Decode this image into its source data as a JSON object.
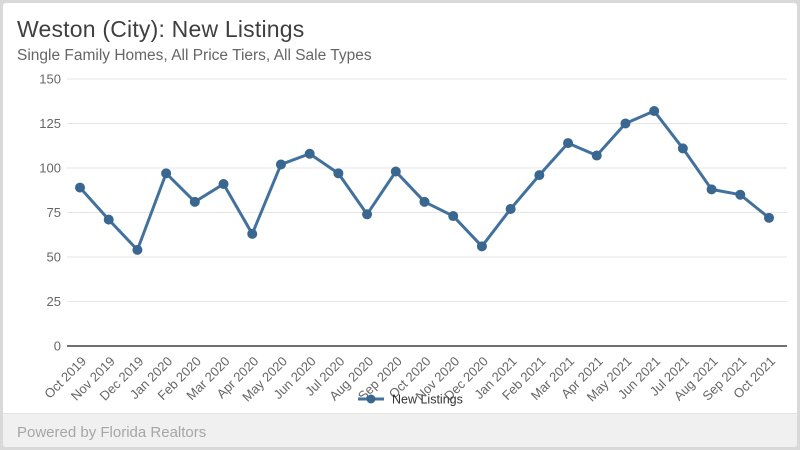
{
  "header": {
    "title": "Weston (City): New Listings",
    "subtitle": "Single Family Homes, All Price Tiers, All Sale Types"
  },
  "legend": {
    "label": "New Listings"
  },
  "footer": {
    "text": "Powered by Florida Realtors"
  },
  "colors": {
    "series": "#41719C",
    "marker": "#3A678F",
    "grid": "#e6e6e6",
    "axis_line": "#404040",
    "axis_label": "#666666",
    "title": "#3f3f3f",
    "subtitle": "#666666",
    "legend_text": "#333333",
    "footer_text": "#a6a6a6"
  },
  "chart_data": {
    "type": "line",
    "title": "Weston (City): New Listings",
    "subtitle": "Single Family Homes, All Price Tiers, All Sale Types",
    "categories": [
      "Oct 2019",
      "Nov 2019",
      "Dec 2019",
      "Jan 2020",
      "Feb 2020",
      "Mar 2020",
      "Apr 2020",
      "May 2020",
      "Jun 2020",
      "Jul 2020",
      "Aug 2020",
      "Sep 2020",
      "Oct 2020",
      "Nov 2020",
      "Dec 2020",
      "Jan 2021",
      "Feb 2021",
      "Mar 2021",
      "Apr 2021",
      "May 2021",
      "Jun 2021",
      "Jul 2021",
      "Aug 2021",
      "Sep 2021",
      "Oct 2021"
    ],
    "series": [
      {
        "name": "New Listings",
        "values": [
          89,
          71,
          54,
          97,
          81,
          91,
          63,
          102,
          108,
          97,
          74,
          98,
          81,
          73,
          56,
          77,
          96,
          114,
          107,
          125,
          132,
          111,
          88,
          85,
          72
        ]
      }
    ],
    "xlabel": "",
    "ylabel": "",
    "ylim": [
      0,
      150
    ],
    "yticks": [
      0,
      25,
      50,
      75,
      100,
      125,
      150
    ],
    "grid": true,
    "legend_position": "bottom",
    "marker": "circle",
    "x_label_rotation": -45
  }
}
